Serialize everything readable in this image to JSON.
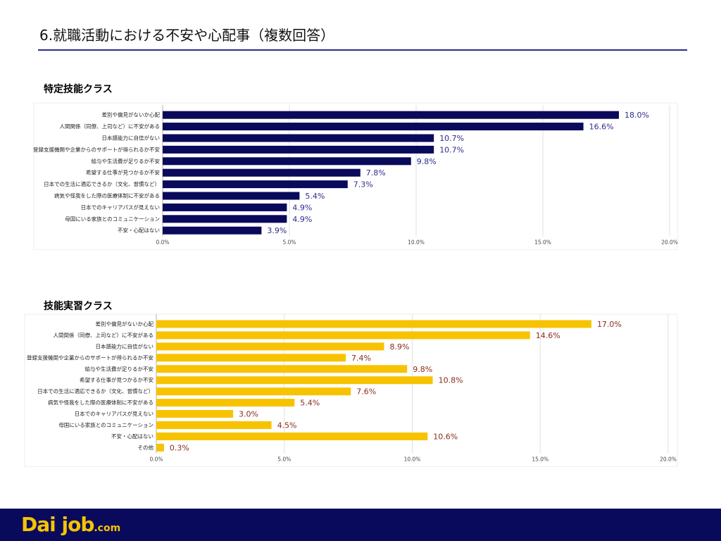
{
  "page": {
    "title": "6.就職活動における不安や心配事（複数回答）"
  },
  "colors": {
    "series_1": "#0a0a5c",
    "series_2": "#f7c300",
    "label_1": "#2d2d8f",
    "label_2": "#8a2d1a",
    "footer": "#0a0a5c",
    "logo": "#f5c400"
  },
  "logo": {
    "text": "Dai job",
    "suffix": ".com"
  },
  "chart_data": [
    {
      "type": "bar",
      "orientation": "horizontal",
      "title": "特定技能クラス",
      "categories": [
        "差別や偏見がないか心配",
        "人間関係（同僚、上司など）に不安がある",
        "日本語能力に自信がない",
        "登録支援機関や企業からのサポートが得られるか不安",
        "給与や生活費が足りるか不安",
        "希望する仕事が見つかるか不安",
        "日本での生活に適応できるか（文化、習慣など）",
        "病気や怪我をした際の医療体制に不安がある",
        "日本でのキャリアパスが見えない",
        "母国にいる家族とのコミュニケーション",
        "不安・心配はない"
      ],
      "values": [
        18.0,
        16.6,
        10.7,
        10.7,
        9.8,
        7.8,
        7.3,
        5.4,
        4.9,
        4.9,
        3.9
      ],
      "value_labels": [
        "18.0%",
        "16.6%",
        "10.7%",
        "10.7%",
        "9.8%",
        "7.8%",
        "7.3%",
        "5.4%",
        "4.9%",
        "4.9%",
        "3.9%"
      ],
      "xlim": [
        0,
        20
      ],
      "xticks": [
        "0.0%",
        "5.0%",
        "10.0%",
        "15.0%",
        "20.0%"
      ],
      "grid": true,
      "legend": "none"
    },
    {
      "type": "bar",
      "orientation": "horizontal",
      "title": "技能実習クラス",
      "categories": [
        "差別や偏見がないか心配",
        "人間関係（同僚、上司など）に不安がある",
        "日本語能力に自信がない",
        "登録支援機関や企業からのサポートが得られるか不安",
        "給与や生活費が足りるか不安",
        "希望する仕事が見つかるか不安",
        "日本での生活に適応できるか（文化、習慣など）",
        "病気や怪我をした際の医療体制に不安がある",
        "日本でのキャリアパスが見えない",
        "母国にいる家族とのコミュニケーション",
        "不安・心配はない",
        "その他"
      ],
      "values": [
        17.0,
        14.6,
        8.9,
        7.4,
        9.8,
        10.8,
        7.6,
        5.4,
        3.0,
        4.5,
        10.6,
        0.3
      ],
      "value_labels": [
        "17.0%",
        "14.6%",
        "8.9%",
        "7.4%",
        "9.8%",
        "10.8%",
        "7.6%",
        "5.4%",
        "3.0%",
        "4.5%",
        "10.6%",
        "0.3%"
      ],
      "xlim": [
        0,
        20
      ],
      "xticks": [
        "0.0%",
        "5.0%",
        "10.0%",
        "15.0%",
        "20.0%"
      ],
      "grid": true,
      "legend": "none"
    }
  ]
}
